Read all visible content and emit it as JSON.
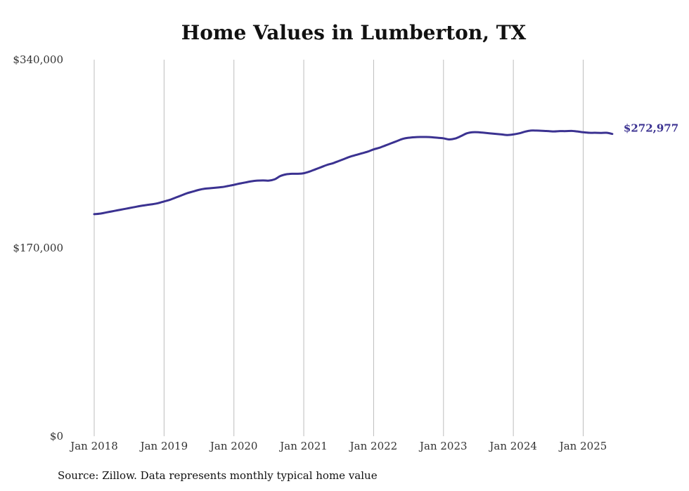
{
  "title": "Home Values in Lumberton, TX",
  "source_note": "Source: Zillow. Data represents monthly typical home value",
  "colors": {
    "line": "#3b3291",
    "grid": "#bdbdbd",
    "text": "#333333"
  },
  "chart_data": {
    "type": "line",
    "title": "Home Values in Lumberton, TX",
    "xlabel": "",
    "ylabel": "",
    "ylim": [
      0,
      340000
    ],
    "y_ticks": [
      0,
      170000,
      340000
    ],
    "y_tick_labels": [
      "$0",
      "$170,000",
      "$340,000"
    ],
    "x_ticks": [
      "2018-01",
      "2019-01",
      "2020-01",
      "2021-01",
      "2022-01",
      "2023-01",
      "2024-01",
      "2025-01"
    ],
    "x_tick_labels": [
      "Jan 2018",
      "Jan 2019",
      "Jan 2020",
      "Jan 2021",
      "Jan 2022",
      "Jan 2023",
      "Jan 2024",
      "Jan 2025"
    ],
    "grid": "vertical",
    "end_label": "$272,977",
    "series": [
      {
        "name": "",
        "x": [
          "2018-01",
          "2018-02",
          "2018-03",
          "2018-04",
          "2018-05",
          "2018-06",
          "2018-07",
          "2018-08",
          "2018-09",
          "2018-10",
          "2018-11",
          "2018-12",
          "2019-01",
          "2019-02",
          "2019-03",
          "2019-04",
          "2019-05",
          "2019-06",
          "2019-07",
          "2019-08",
          "2019-09",
          "2019-10",
          "2019-11",
          "2019-12",
          "2020-01",
          "2020-02",
          "2020-03",
          "2020-04",
          "2020-05",
          "2020-06",
          "2020-07",
          "2020-08",
          "2020-09",
          "2020-10",
          "2020-11",
          "2020-12",
          "2021-01",
          "2021-02",
          "2021-03",
          "2021-04",
          "2021-05",
          "2021-06",
          "2021-07",
          "2021-08",
          "2021-09",
          "2021-10",
          "2021-11",
          "2021-12",
          "2022-01",
          "2022-02",
          "2022-03",
          "2022-04",
          "2022-05",
          "2022-06",
          "2022-07",
          "2022-08",
          "2022-09",
          "2022-10",
          "2022-11",
          "2022-12",
          "2023-01",
          "2023-02",
          "2023-03",
          "2023-04",
          "2023-05",
          "2023-06",
          "2023-07",
          "2023-08",
          "2023-09",
          "2023-10",
          "2023-11",
          "2023-12",
          "2024-01",
          "2024-02",
          "2024-03",
          "2024-04",
          "2024-05",
          "2024-06",
          "2024-07",
          "2024-08",
          "2024-09",
          "2024-10",
          "2024-11",
          "2024-12",
          "2025-01",
          "2025-02",
          "2025-03",
          "2025-04",
          "2025-05",
          "2025-06"
        ],
        "values": [
          200500,
          201000,
          202000,
          203000,
          204000,
          205000,
          206000,
          207000,
          208000,
          208800,
          209500,
          210500,
          212000,
          213500,
          215500,
          217500,
          219500,
          221000,
          222500,
          223500,
          224000,
          224500,
          225000,
          226000,
          227000,
          228200,
          229200,
          230200,
          230800,
          231000,
          230800,
          232000,
          235000,
          236500,
          237000,
          237000,
          237500,
          239000,
          241000,
          243000,
          245000,
          246500,
          248500,
          250500,
          252500,
          254000,
          255500,
          257000,
          259000,
          260500,
          262500,
          264500,
          266500,
          268500,
          269500,
          270000,
          270200,
          270200,
          270000,
          269500,
          269000,
          268000,
          268800,
          271000,
          273500,
          274500,
          274500,
          274000,
          273500,
          273000,
          272500,
          272000,
          272500,
          273500,
          275000,
          276000,
          276000,
          275800,
          275500,
          275200,
          275500,
          275500,
          275700,
          275200,
          274500,
          274000,
          274000,
          273900,
          274000,
          272977
        ]
      }
    ]
  }
}
